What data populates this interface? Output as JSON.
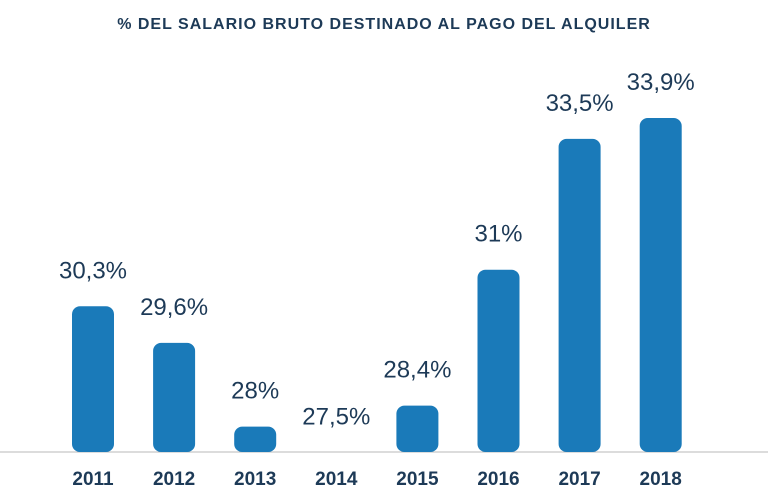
{
  "chart_data": {
    "type": "bar",
    "title": "% DEL SALARIO BRUTO DESTINADO AL PAGO DEL ALQUILER",
    "xlabel": "",
    "ylabel": "",
    "categories": [
      "2011",
      "2012",
      "2013",
      "2014",
      "2015",
      "2016",
      "2017",
      "2018"
    ],
    "values": [
      30.3,
      29.6,
      28,
      27.5,
      28.4,
      31,
      33.5,
      33.9
    ],
    "value_labels": [
      "30,3%",
      "29,6%",
      "28%",
      "27,5%",
      "28,4%",
      "31%",
      "33,5%",
      "33,9%"
    ],
    "grid": false,
    "legend": "none",
    "bar_color": "#1a7ab9",
    "text_color": "#1d3a57"
  }
}
